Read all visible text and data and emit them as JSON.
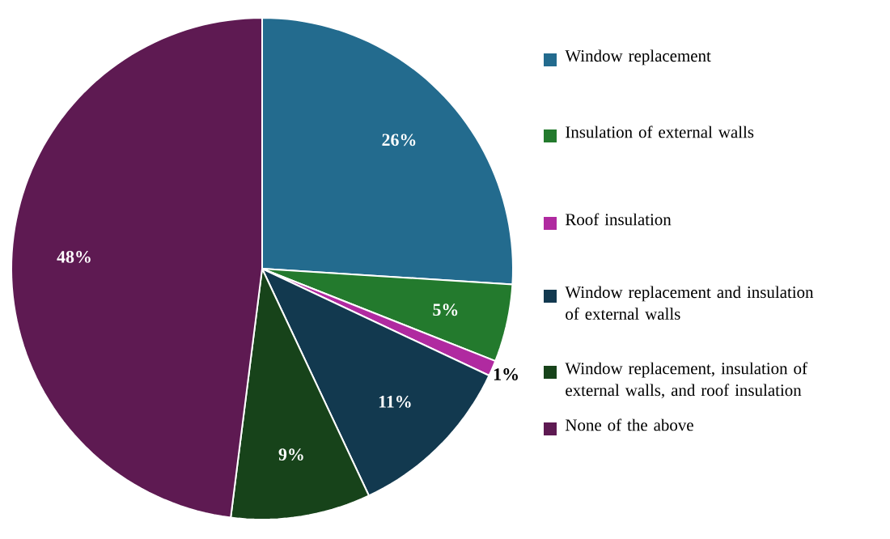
{
  "chart_data": {
    "type": "pie",
    "categories": [
      "Window replacement",
      "Insulation of external walls",
      "Roof insulation",
      "Window replacement and insulation of external walls",
      "Window replacement, insulation of external walls, and roof insulation",
      "None of the above"
    ],
    "values": [
      26,
      5,
      1,
      11,
      9,
      48
    ],
    "colors": [
      "#236b8e",
      "#237a2d",
      "#b02aa0",
      "#12394f",
      "#17431a",
      "#5e1a52"
    ],
    "value_labels": [
      "26%",
      "5%",
      "1%",
      "11%",
      "9%",
      "48%"
    ],
    "legend": "right"
  }
}
